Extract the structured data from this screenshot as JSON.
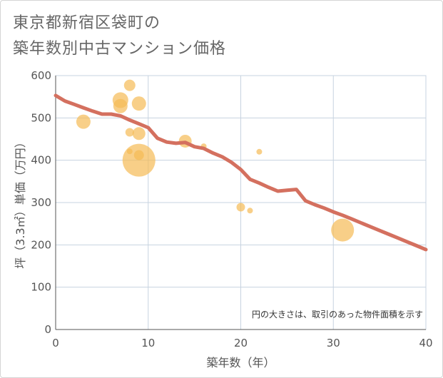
{
  "title": {
    "line1": "東京都新宿区袋町の",
    "line2": "築年数別中古マンション価格"
  },
  "chart_data": {
    "type": "scatter",
    "title": "東京都新宿区袋町の築年数別中古マンション価格",
    "xlabel": "築年数（年）",
    "ylabel": "坪（3.3㎡）単価（万円）",
    "xlim": [
      0,
      40
    ],
    "ylim": [
      0,
      600
    ],
    "xticks": [
      0,
      10,
      20,
      30,
      40
    ],
    "yticks": [
      0,
      100,
      200,
      300,
      400,
      500,
      600
    ],
    "grid": true,
    "note": "円の大きさは、取引のあった物件面積を示す",
    "colors": {
      "bubble": "#f5bb55",
      "line": "#d4705f",
      "grid": "#c7d3e0"
    },
    "bubbles": [
      {
        "x": 3,
        "y": 491,
        "size": 10
      },
      {
        "x": 7,
        "y": 542,
        "size": 11
      },
      {
        "x": 7,
        "y": 528,
        "size": 10
      },
      {
        "x": 8,
        "y": 577,
        "size": 8
      },
      {
        "x": 9,
        "y": 534,
        "size": 10
      },
      {
        "x": 8,
        "y": 466,
        "size": 6
      },
      {
        "x": 9,
        "y": 463,
        "size": 9
      },
      {
        "x": 8,
        "y": 421,
        "size": 4
      },
      {
        "x": 9,
        "y": 412,
        "size": 7
      },
      {
        "x": 9,
        "y": 400,
        "size": 23
      },
      {
        "x": 14,
        "y": 445,
        "size": 9
      },
      {
        "x": 16,
        "y": 433,
        "size": 4
      },
      {
        "x": 22,
        "y": 420,
        "size": 4
      },
      {
        "x": 20,
        "y": 289,
        "size": 6
      },
      {
        "x": 21,
        "y": 281,
        "size": 4
      },
      {
        "x": 31,
        "y": 235,
        "size": 16
      }
    ],
    "trend": [
      [
        0,
        553
      ],
      [
        1,
        540
      ],
      [
        2,
        532
      ],
      [
        3,
        524
      ],
      [
        4,
        516
      ],
      [
        5,
        509
      ],
      [
        6,
        509
      ],
      [
        7,
        505
      ],
      [
        8,
        495
      ],
      [
        9,
        486
      ],
      [
        10,
        477
      ],
      [
        11,
        452
      ],
      [
        12,
        443
      ],
      [
        13,
        440
      ],
      [
        14,
        442
      ],
      [
        15,
        432
      ],
      [
        16,
        428
      ],
      [
        17,
        417
      ],
      [
        18,
        408
      ],
      [
        19,
        395
      ],
      [
        20,
        378
      ],
      [
        21,
        355
      ],
      [
        22,
        346
      ],
      [
        23,
        336
      ],
      [
        24,
        327
      ],
      [
        25,
        329
      ],
      [
        26,
        331
      ],
      [
        27,
        304
      ],
      [
        28,
        295
      ],
      [
        29,
        287
      ],
      [
        30,
        278
      ],
      [
        31,
        270
      ],
      [
        32,
        261
      ],
      [
        33,
        252
      ],
      [
        34,
        243
      ],
      [
        35,
        234
      ],
      [
        36,
        225
      ],
      [
        37,
        216
      ],
      [
        38,
        207
      ],
      [
        39,
        198
      ],
      [
        40,
        189
      ]
    ]
  }
}
